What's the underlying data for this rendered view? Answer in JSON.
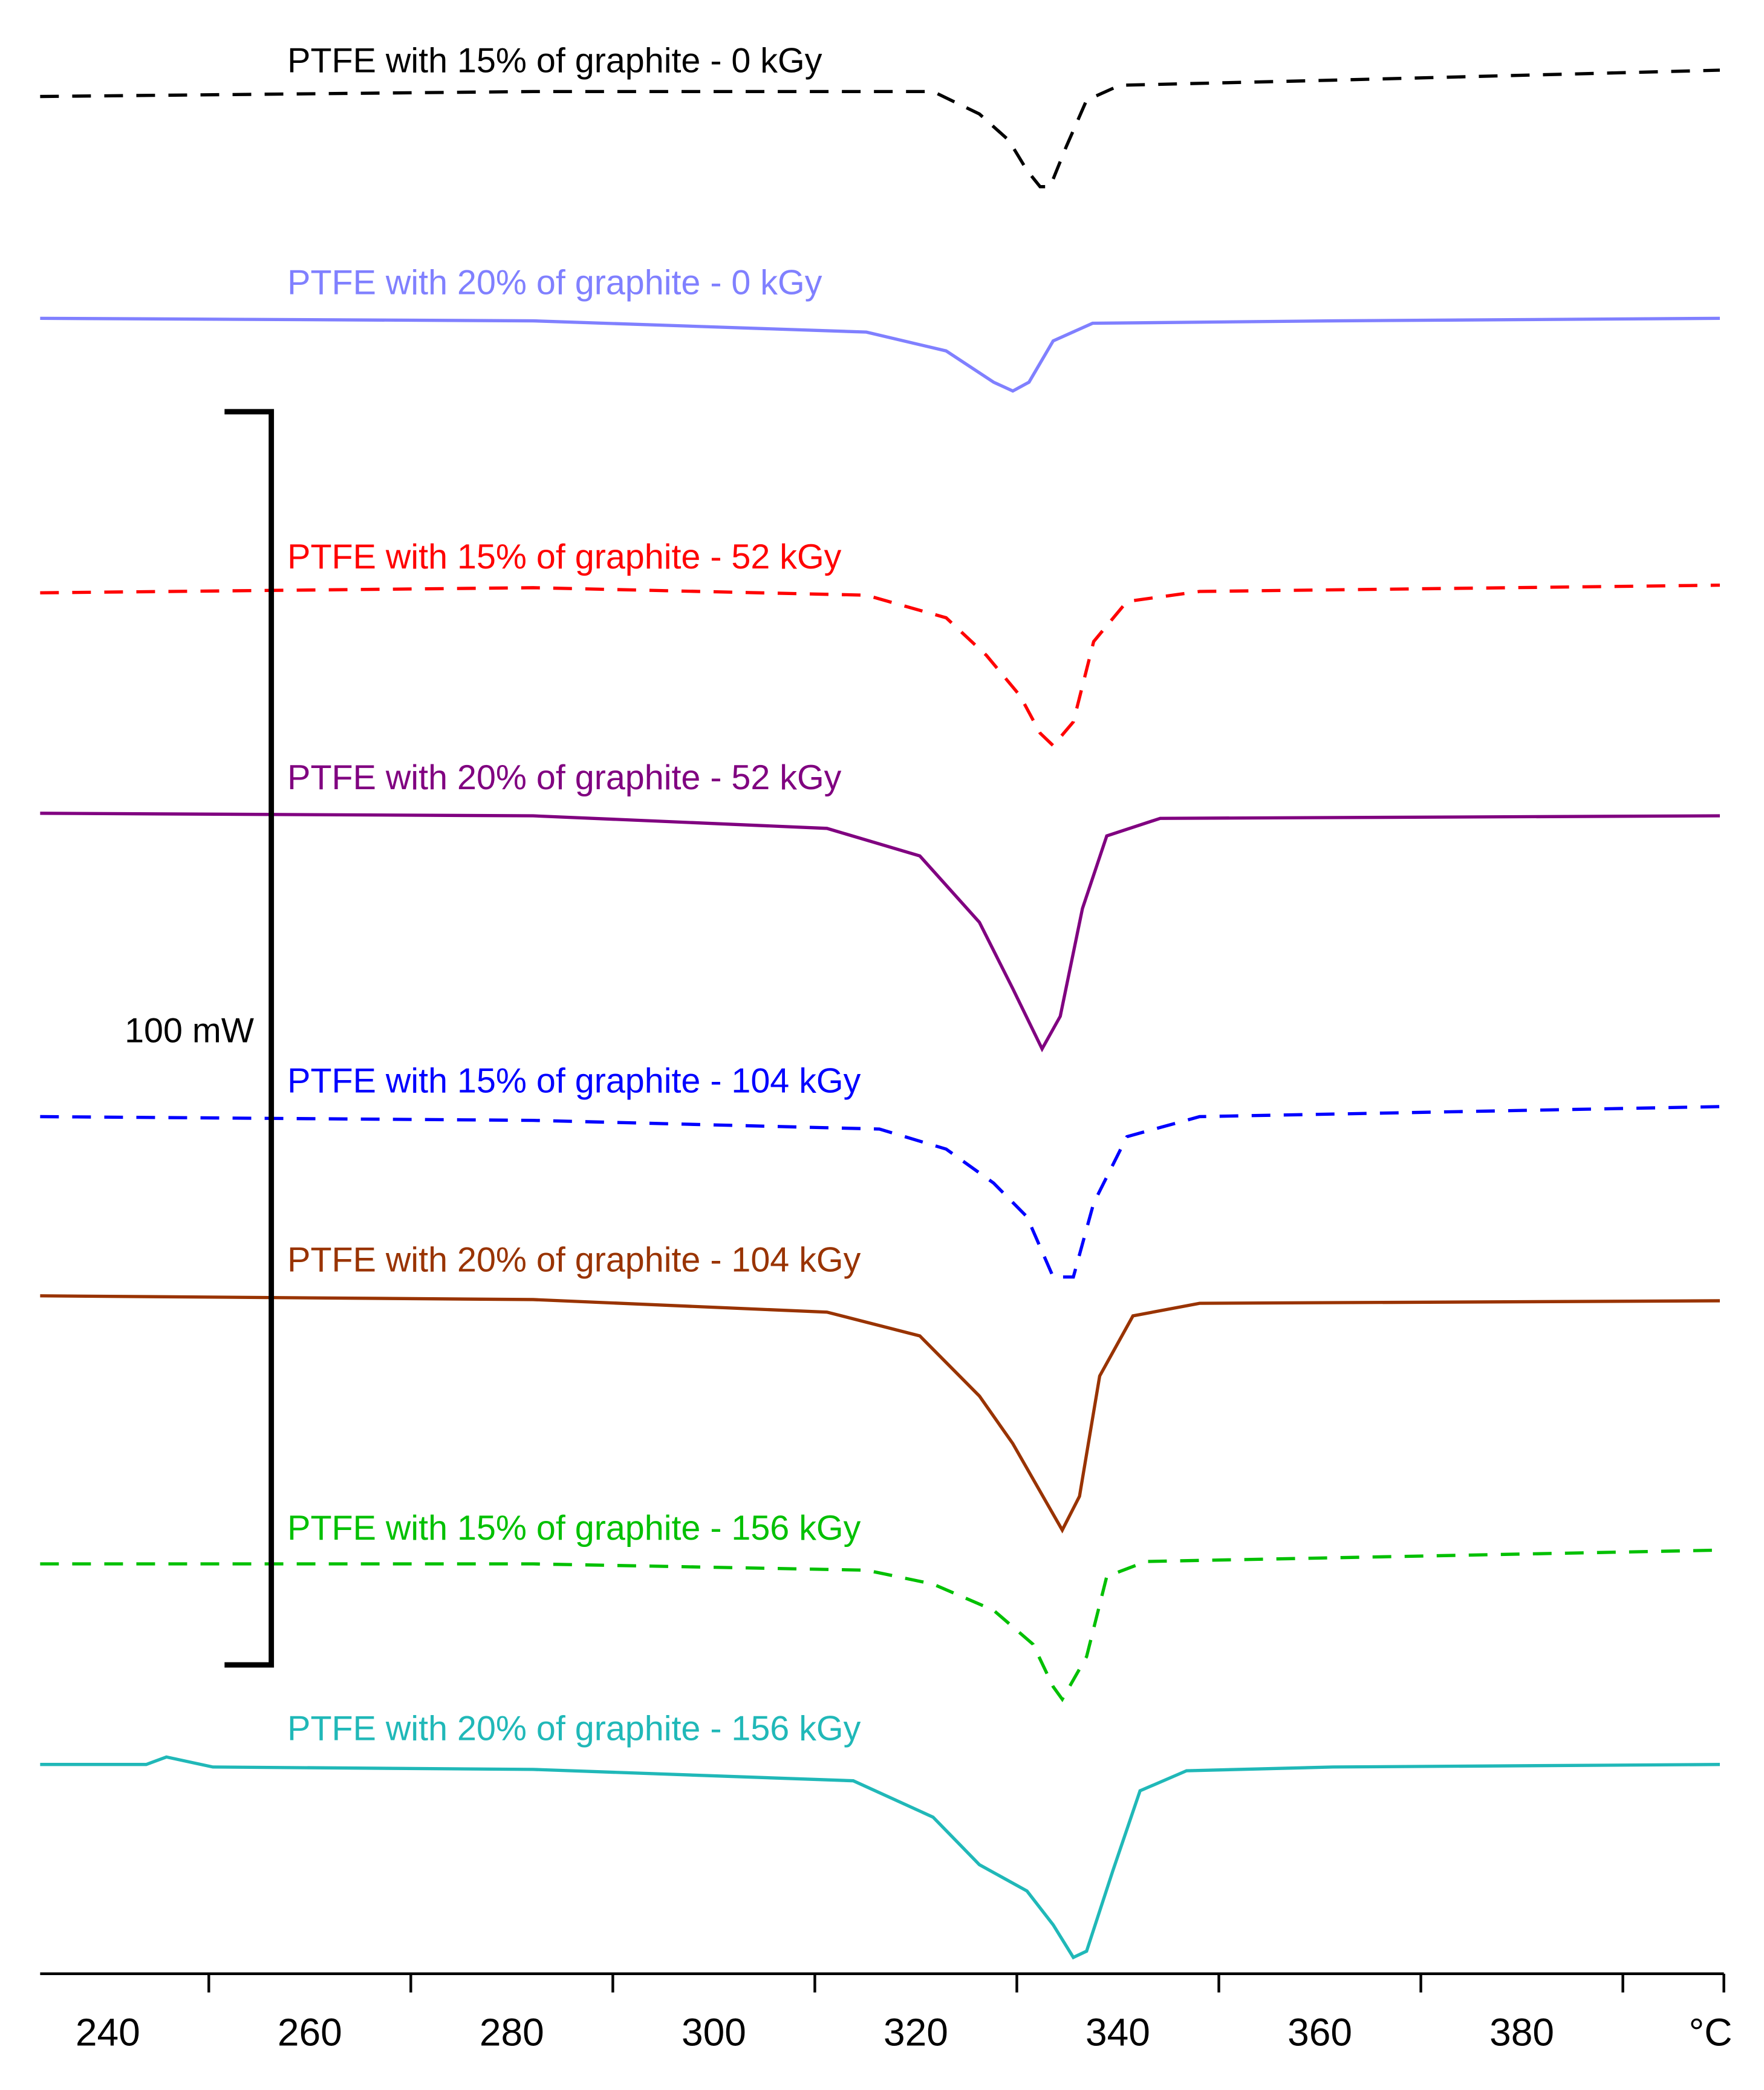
{
  "chart_data": {
    "type": "line",
    "xlim": [
      233.3,
      400
    ],
    "xticks": [
      240,
      260,
      280,
      300,
      320,
      340,
      360,
      380,
      {
        "value": 400,
        "label": "°C"
      }
    ],
    "xminor_ticks": [
      250,
      270,
      290,
      310,
      330,
      350,
      370,
      390
    ],
    "ylim": [
      0,
      157.5
    ],
    "scale_bar": {
      "label": "100 mW",
      "value": 100
    },
    "series": [
      {
        "name": "PTFE with 15% of graphite - 0 kGy",
        "color": "#000000",
        "dash": true,
        "x": [
          233.3,
          282.1,
          315.1,
          321.7,
          326.3,
          329.2,
          331.0,
          332.3,
          333.3,
          334.9,
          336.9,
          340.2,
          361.3,
          399.6
        ],
        "values": [
          149.8,
          150.2,
          150.2,
          150.2,
          148.4,
          146.3,
          143.9,
          142.6,
          142.6,
          145.8,
          149.5,
          150.7,
          151.1,
          151.9
        ]
      },
      {
        "name": "PTFE with 20% of graphite - 0 kGy",
        "color": "#8080ff",
        "dash": false,
        "x": [
          233.3,
          282.1,
          315.1,
          323.0,
          327.7,
          329.6,
          331.2,
          333.6,
          337.5,
          361.3,
          399.6
        ],
        "values": [
          132.1,
          131.9,
          131.0,
          129.5,
          127.0,
          126.3,
          127.0,
          130.3,
          131.7,
          131.9,
          132.1
        ]
      },
      {
        "name": "PTFE with 15% of graphite - 52 kGy",
        "color": "#ff0000",
        "dash": true,
        "x": [
          233.3,
          282.1,
          315.1,
          323.0,
          327.0,
          330.3,
          332.3,
          333.6,
          335.6,
          337.6,
          340.9,
          348.1,
          399.6
        ],
        "values": [
          110.2,
          110.6,
          110.0,
          108.2,
          105.2,
          102.0,
          99.0,
          98.0,
          99.9,
          106.3,
          109.5,
          110.3,
          110.8
        ]
      },
      {
        "name": "PTFE with 20% of graphite - 52 kGy",
        "color": "#800080",
        "dash": false,
        "x": [
          233.3,
          282.1,
          311.2,
          320.4,
          326.3,
          329.6,
          332.5,
          334.3,
          336.5,
          338.9,
          344.2,
          399.6
        ],
        "values": [
          92.6,
          92.4,
          91.4,
          89.2,
          83.9,
          78.6,
          73.8,
          76.4,
          85.0,
          90.8,
          92.2,
          92.4
        ]
      },
      {
        "name": "PTFE with 15% of graphite - 104 kGy",
        "color": "#0000ff",
        "dash": true,
        "x": [
          233.3,
          282.1,
          316.4,
          323.0,
          327.7,
          331.0,
          333.6,
          335.6,
          337.6,
          340.9,
          348.1,
          399.6
        ],
        "values": [
          68.4,
          68.1,
          67.4,
          65.8,
          63.1,
          60.4,
          55.6,
          55.6,
          61.5,
          66.8,
          68.4,
          69.2
        ]
      },
      {
        "name": "PTFE with 20% of graphite - 104 kGy",
        "color": "#993300",
        "dash": false,
        "x": [
          233.3,
          282.1,
          311.2,
          320.4,
          326.3,
          329.6,
          333.0,
          334.5,
          336.2,
          338.2,
          341.5,
          348.1,
          399.6
        ],
        "values": [
          54.1,
          53.8,
          52.8,
          50.9,
          46.1,
          42.3,
          37.5,
          35.4,
          38.1,
          47.7,
          52.5,
          53.5,
          53.7
        ]
      },
      {
        "name": "PTFE with 15% of graphite - 156 kGy",
        "color": "#00c000",
        "dash": true,
        "x": [
          233.3,
          282.1,
          315.1,
          321.7,
          327.7,
          331.6,
          333.6,
          334.5,
          336.9,
          338.9,
          342.8,
          399.6
        ],
        "values": [
          32.7,
          32.7,
          32.2,
          31.1,
          29.0,
          26.3,
          22.9,
          21.9,
          25.3,
          31.7,
          32.9,
          33.8
        ]
      },
      {
        "name": "PTFE with 20% of graphite - 156 kGy",
        "color": "#20b8b8",
        "dash": false,
        "x": [
          233.3,
          243.8,
          245.8,
          250.4,
          282.1,
          313.8,
          321.7,
          326.3,
          331.0,
          333.6,
          335.6,
          336.9,
          339.5,
          342.2,
          346.8,
          361.3,
          399.6
        ],
        "values": [
          16.7,
          16.7,
          17.3,
          16.5,
          16.3,
          15.4,
          12.5,
          8.7,
          6.6,
          3.9,
          1.3,
          1.8,
          8.2,
          14.6,
          16.2,
          16.5,
          16.7
        ]
      }
    ]
  }
}
